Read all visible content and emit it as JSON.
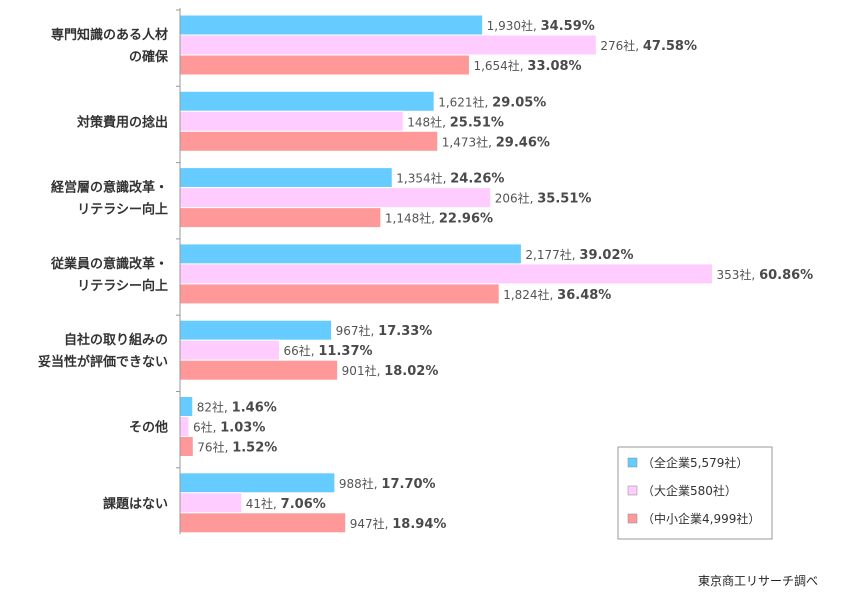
{
  "chart_data": {
    "type": "bar",
    "orientation": "horizontal",
    "categories": [
      [
        "専門知識のある人材",
        "の確保"
      ],
      [
        "対策費用の捻出"
      ],
      [
        "経営層の意識改革・",
        "リテラシー向上"
      ],
      [
        "従業員の意識改革・",
        "リテラシー向上"
      ],
      [
        "自社の取り組みの",
        "妥当性が評価できない"
      ],
      [
        "その他"
      ],
      [
        "課題はない"
      ]
    ],
    "series": [
      {
        "name": "（全企業5,579社）",
        "color": "#66ccff",
        "values": [
          34.59,
          29.05,
          24.26,
          39.02,
          17.33,
          1.46,
          17.7
        ],
        "counts": [
          "1,930社",
          "1,621社",
          "1,354社",
          "2,177社",
          "967社",
          "82社",
          "988社"
        ],
        "labels": [
          "34.59%",
          "29.05%",
          "24.26%",
          "39.02%",
          "17.33%",
          "1.46%",
          "17.70%"
        ]
      },
      {
        "name": "（大企業580社）",
        "color": "#ffccff",
        "values": [
          47.58,
          25.51,
          35.51,
          60.86,
          11.37,
          1.03,
          7.06
        ],
        "counts": [
          "276社",
          "148社",
          "206社",
          "353社",
          "66社",
          "6社",
          "41社"
        ],
        "labels": [
          "47.58%",
          "25.51%",
          "35.51%",
          "60.86%",
          "11.37%",
          "1.03%",
          "7.06%"
        ]
      },
      {
        "name": "（中小企業4,999社）",
        "color": "#ff9999",
        "values": [
          33.08,
          29.46,
          22.96,
          36.48,
          18.02,
          1.52,
          18.94
        ],
        "counts": [
          "1,654社",
          "1,473社",
          "1,148社",
          "1,824社",
          "901社",
          "76社",
          "947社"
        ],
        "labels": [
          "33.08%",
          "29.46%",
          "22.96%",
          "36.48%",
          "18.02%",
          "1.52%",
          "18.94%"
        ]
      }
    ],
    "legend_position": "bottom-right",
    "grid": false
  },
  "source_note": "東京商工リサーチ調べ"
}
